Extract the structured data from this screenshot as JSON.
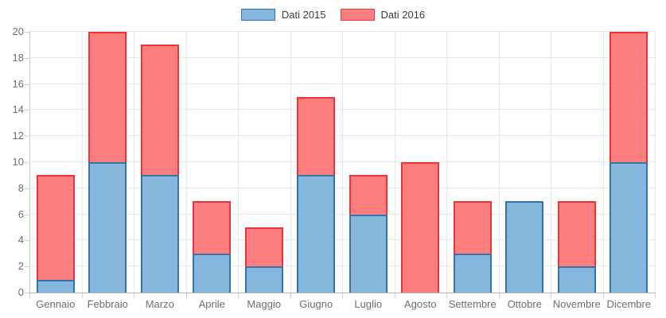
{
  "chart_data": {
    "type": "bar",
    "stacked": true,
    "title": "",
    "xlabel": "",
    "ylabel": "",
    "categories": [
      "Gennaio",
      "Febbraio",
      "Marzo",
      "Aprile",
      "Maggio",
      "Giugno",
      "Luglio",
      "Agosto",
      "Settembre",
      "Ottobre",
      "Novembre",
      "Dicembre"
    ],
    "series": [
      {
        "name": "Dati 2015",
        "values": [
          1,
          10,
          9,
          3,
          2,
          9,
          6,
          0,
          3,
          7,
          2,
          10
        ],
        "fill": "#85b7dc",
        "border": "#3374ae"
      },
      {
        "name": "Dati 2016",
        "values": [
          8,
          10,
          10,
          4,
          3,
          6,
          3,
          10,
          4,
          0,
          5,
          10
        ],
        "fill": "#fc7e7e",
        "border": "#ee3435"
      }
    ],
    "ylim": [
      0,
      20
    ],
    "ytick_step": 2,
    "y_tick_labels": [
      "0",
      "2",
      "4",
      "6",
      "8",
      "10",
      "12",
      "14",
      "16",
      "18",
      "20"
    ],
    "grid": true,
    "legend_position": "top",
    "colors": {
      "gridline": "#e8e8e8",
      "axis_x": "#b3b3b3",
      "axis_y": "#c9c9c9",
      "tick": "#cfcfcf",
      "axis_label": "#6e6e6e",
      "legend_text": "#3c3c3c",
      "background": "#ffffff"
    }
  }
}
